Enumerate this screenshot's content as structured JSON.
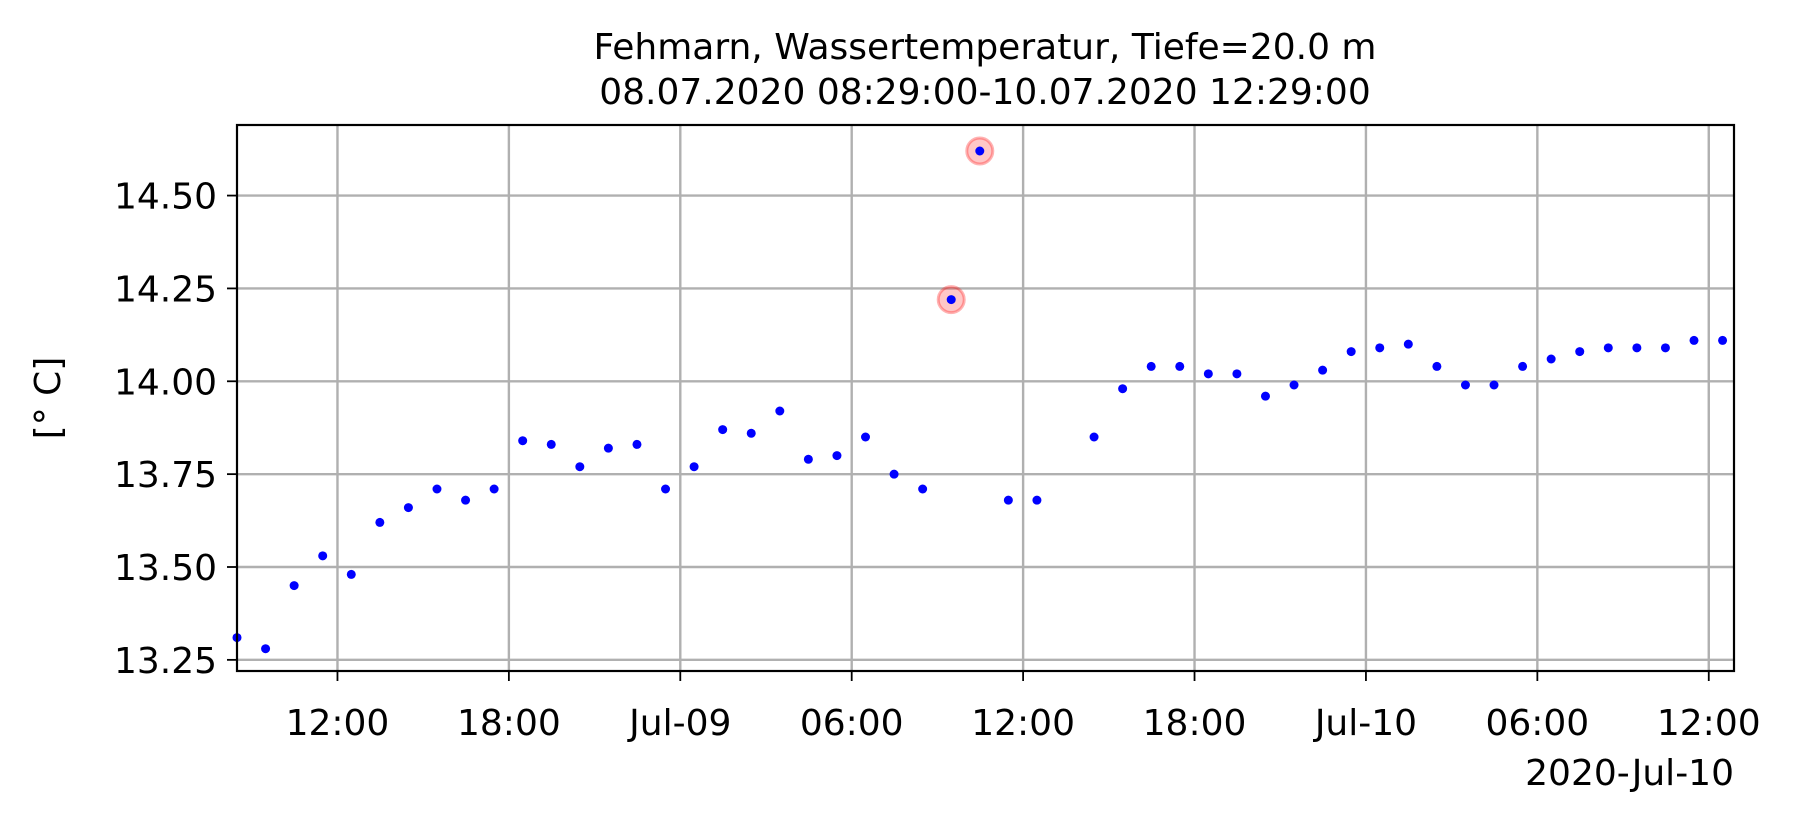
{
  "chart_data": {
    "type": "scatter",
    "title_line1": "Fehmarn, Wassertemperatur, Tiefe=20.0 m",
    "title_line2": "08.07.2020 08:29:00-10.07.2020 12:29:00",
    "ylabel": "[° C]",
    "xlabel": "",
    "date_label": "2020-Jul-10",
    "xlim": [
      "2020-07-08 08:29",
      "2020-07-10 12:53"
    ],
    "ylim": [
      13.22,
      14.69
    ],
    "grid": true,
    "yticks": [
      13.25,
      13.5,
      13.75,
      14.0,
      14.25,
      14.5
    ],
    "ytick_labels": [
      "13.25",
      "13.50",
      "13.75",
      "14.00",
      "14.25",
      "14.50"
    ],
    "xticks": [
      "2020-07-08 12:00",
      "2020-07-08 18:00",
      "2020-07-09 00:00",
      "2020-07-09 06:00",
      "2020-07-09 12:00",
      "2020-07-09 18:00",
      "2020-07-10 00:00",
      "2020-07-10 06:00",
      "2020-07-10 12:00"
    ],
    "xtick_labels": [
      "12:00",
      "18:00",
      "Jul-09",
      "06:00",
      "12:00",
      "18:00",
      "Jul-10",
      "06:00",
      "12:00"
    ],
    "point_color": "#0000ff",
    "highlight_color": "#ff0000",
    "series": [
      {
        "x": [
          "2020-07-08 08:29",
          "2020-07-08 09:29",
          "2020-07-08 10:29",
          "2020-07-08 11:29",
          "2020-07-08 12:29",
          "2020-07-08 13:29",
          "2020-07-08 14:29",
          "2020-07-08 15:29",
          "2020-07-08 16:29",
          "2020-07-08 17:29",
          "2020-07-08 18:29",
          "2020-07-08 19:29",
          "2020-07-08 20:29",
          "2020-07-08 21:29",
          "2020-07-08 22:29",
          "2020-07-08 23:29",
          "2020-07-09 00:29",
          "2020-07-09 01:29",
          "2020-07-09 02:29",
          "2020-07-09 03:29",
          "2020-07-09 04:29",
          "2020-07-09 05:29",
          "2020-07-09 06:29",
          "2020-07-09 07:29",
          "2020-07-09 08:29",
          "2020-07-09 09:29",
          "2020-07-09 10:29",
          "2020-07-09 11:29",
          "2020-07-09 12:29",
          "2020-07-09 14:29",
          "2020-07-09 15:29",
          "2020-07-09 16:29",
          "2020-07-09 17:29",
          "2020-07-09 18:29",
          "2020-07-09 19:29",
          "2020-07-09 20:29",
          "2020-07-09 21:29",
          "2020-07-09 22:29",
          "2020-07-09 23:29",
          "2020-07-10 00:29",
          "2020-07-10 01:29",
          "2020-07-10 02:29",
          "2020-07-10 03:29",
          "2020-07-10 04:29",
          "2020-07-10 05:29",
          "2020-07-10 06:29",
          "2020-07-10 07:29",
          "2020-07-10 08:29",
          "2020-07-10 09:29",
          "2020-07-10 10:29",
          "2020-07-10 11:29",
          "2020-07-10 12:29"
        ],
        "y": [
          13.31,
          13.28,
          13.45,
          13.53,
          13.48,
          13.62,
          13.66,
          13.71,
          13.68,
          13.71,
          13.84,
          13.83,
          13.77,
          13.82,
          13.83,
          13.71,
          13.77,
          13.87,
          13.86,
          13.92,
          13.79,
          13.8,
          13.85,
          13.75,
          13.71,
          14.22,
          14.62,
          13.68,
          13.68,
          13.85,
          13.98,
          14.04,
          14.04,
          14.02,
          14.02,
          13.96,
          13.99,
          14.03,
          14.08,
          14.09,
          14.1,
          14.04,
          13.99,
          13.99,
          14.04,
          14.06,
          14.08,
          14.09,
          14.09,
          14.09,
          14.11,
          14.11
        ]
      }
    ],
    "highlighted": [
      {
        "x": "2020-07-09 09:29",
        "y": 14.22
      },
      {
        "x": "2020-07-09 10:29",
        "y": 14.62
      }
    ]
  }
}
